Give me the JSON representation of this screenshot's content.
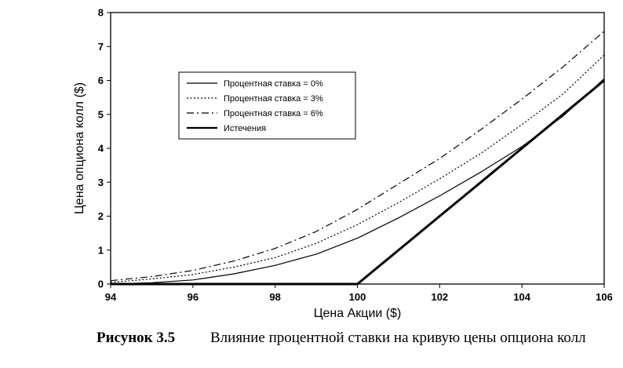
{
  "caption": {
    "label": "Рисунок 3.5",
    "text": "Влияние процентной ставки на кривую цены опциона колл"
  },
  "chart_data": {
    "type": "line",
    "title": "",
    "xlabel": "Цена Акции ($)",
    "ylabel": "Цена опциона колл ($)",
    "xlim": [
      94,
      106
    ],
    "ylim": [
      0,
      8
    ],
    "x_ticks": [
      "94",
      "96",
      "98",
      "100",
      "102",
      "104",
      "106"
    ],
    "y_ticks": [
      "0",
      "1",
      "2",
      "3",
      "4",
      "5",
      "6",
      "7",
      "8"
    ],
    "grid": false,
    "legend_position": "upper-left inside",
    "x": [
      94,
      95,
      96,
      97,
      98,
      99,
      100,
      101,
      102,
      103,
      104,
      105,
      106
    ],
    "series": [
      {
        "name": "Процентная ставка = 0%",
        "style": "solid",
        "values": [
          0.0,
          0.04,
          0.12,
          0.3,
          0.55,
          0.88,
          1.35,
          1.95,
          2.6,
          3.3,
          4.05,
          4.95,
          6.05
        ]
      },
      {
        "name": "Процентная ставка = 3%",
        "style": "dotted",
        "values": [
          0.05,
          0.15,
          0.28,
          0.5,
          0.78,
          1.2,
          1.75,
          2.4,
          3.1,
          3.85,
          4.7,
          5.6,
          6.75
        ]
      },
      {
        "name": "Процентная ставка = 6%",
        "style": "dashdot",
        "values": [
          0.1,
          0.22,
          0.4,
          0.68,
          1.05,
          1.55,
          2.2,
          2.95,
          3.7,
          4.55,
          5.45,
          6.4,
          7.45
        ]
      },
      {
        "name": "Истечения",
        "style": "thick",
        "values": [
          0,
          0,
          0,
          0,
          0,
          0,
          0,
          1.0,
          2.0,
          3.0,
          4.0,
          5.0,
          6.0
        ]
      }
    ]
  }
}
